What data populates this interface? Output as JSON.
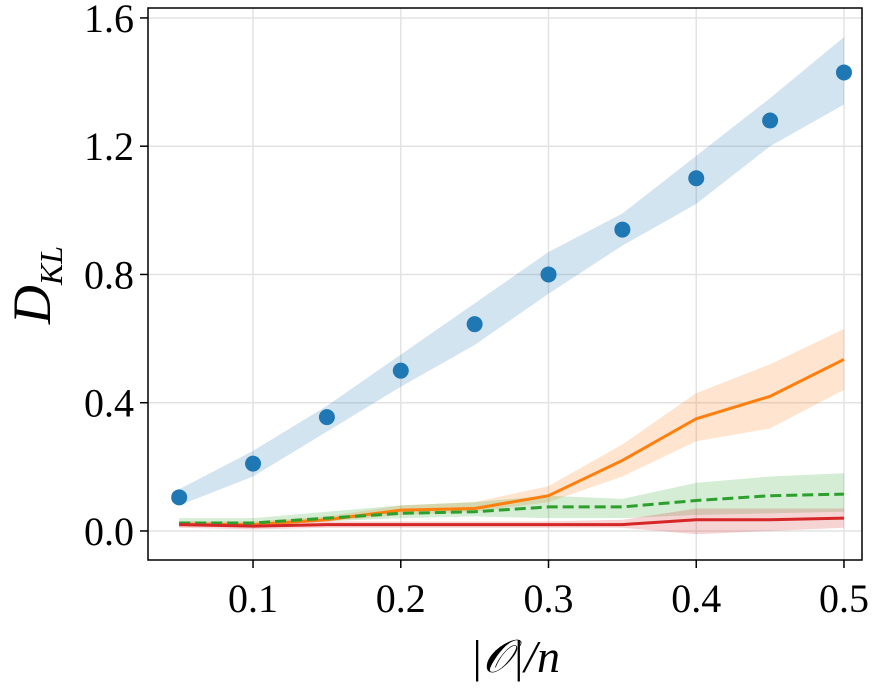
{
  "chart_data": {
    "type": "line",
    "xlabel": "|𝒪|/n",
    "ylabel": "D",
    "ylabel_sub": "KL",
    "x": [
      0.05,
      0.1,
      0.15,
      0.2,
      0.25,
      0.3,
      0.35,
      0.4,
      0.45,
      0.5
    ],
    "series": [
      {
        "color": "#1f77b4",
        "style": "markers",
        "values": [
          0.105,
          0.21,
          0.355,
          0.5,
          0.645,
          0.8,
          0.94,
          1.1,
          1.28,
          1.43
        ],
        "lower": [
          0.08,
          0.17,
          0.31,
          0.45,
          0.58,
          0.74,
          0.89,
          1.02,
          1.2,
          1.33
        ],
        "upper": [
          0.13,
          0.25,
          0.39,
          0.55,
          0.71,
          0.87,
          0.99,
          1.17,
          1.35,
          1.54
        ]
      },
      {
        "color": "#ff7f0e",
        "style": "solid",
        "values": [
          0.02,
          0.02,
          0.035,
          0.065,
          0.07,
          0.11,
          0.22,
          0.35,
          0.42,
          0.535
        ],
        "lower": [
          0.015,
          0.015,
          0.03,
          0.05,
          0.06,
          0.09,
          0.17,
          0.28,
          0.32,
          0.44
        ],
        "upper": [
          0.03,
          0.03,
          0.045,
          0.08,
          0.09,
          0.14,
          0.27,
          0.43,
          0.52,
          0.63
        ]
      },
      {
        "color": "#2ca02c",
        "style": "dashed",
        "values": [
          0.025,
          0.025,
          0.04,
          0.055,
          0.06,
          0.075,
          0.075,
          0.095,
          0.11,
          0.115
        ],
        "lower": [
          0.015,
          0.015,
          0.03,
          0.04,
          0.045,
          0.04,
          0.04,
          0.05,
          0.055,
          0.06
        ],
        "upper": [
          0.04,
          0.04,
          0.06,
          0.08,
          0.09,
          0.11,
          0.1,
          0.15,
          0.17,
          0.18
        ]
      },
      {
        "color": "#d62728",
        "style": "solid",
        "values": [
          0.02,
          0.015,
          0.02,
          0.02,
          0.02,
          0.02,
          0.02,
          0.035,
          0.035,
          0.04
        ],
        "lower": [
          0.01,
          0.005,
          0.01,
          0.01,
          0.01,
          0.01,
          0.01,
          -0.01,
          0.0,
          0.01
        ],
        "upper": [
          0.03,
          0.025,
          0.03,
          0.03,
          0.03,
          0.03,
          0.035,
          0.07,
          0.07,
          0.07
        ]
      }
    ],
    "xlim": [
      0.0289,
      0.5122
    ],
    "ylim": [
      -0.0905,
      1.631
    ],
    "xticks": [
      0.1,
      0.2,
      0.3,
      0.4,
      0.5
    ],
    "yticks": [
      {
        "value": 0,
        "label": "0.0"
      },
      0.4,
      0.8,
      1.2,
      1.6
    ],
    "grid": true
  }
}
